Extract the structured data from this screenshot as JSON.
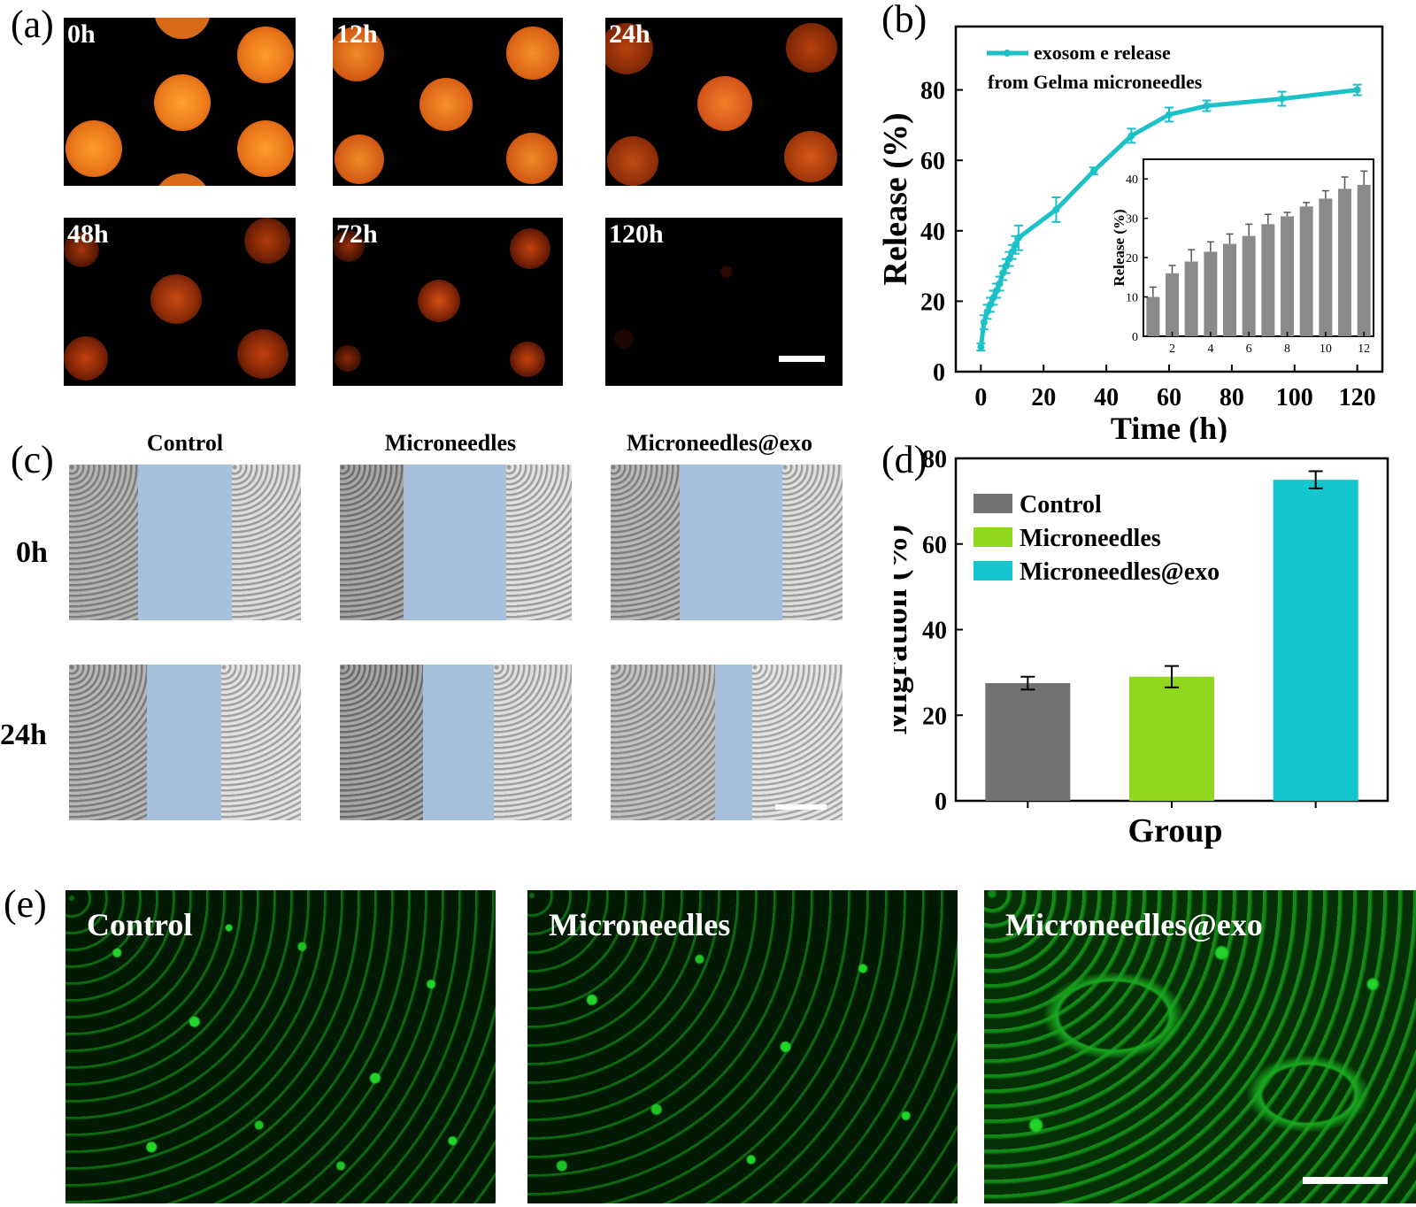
{
  "panels": {
    "a": "(a)",
    "b": "(b)",
    "c": "(c)",
    "d": "(d)",
    "e": "(e)"
  },
  "panel_a": {
    "times": [
      "0h",
      "12h",
      "24h",
      "48h",
      "72h",
      "120h"
    ]
  },
  "panel_c": {
    "columns": [
      "Control",
      "Microneedles",
      "Microneedles@exo"
    ],
    "rows": [
      "0h",
      "24h"
    ]
  },
  "panel_e": {
    "labels": [
      "Control",
      "Microneedles",
      "Microneedles@exo"
    ]
  },
  "chart_data": [
    {
      "type": "line",
      "panel": "b",
      "title": "",
      "xlabel": "Time (h)",
      "ylabel": "Release (%)",
      "xlim": [
        -8,
        128
      ],
      "ylim": [
        0,
        98
      ],
      "xticks": [
        0,
        20,
        40,
        60,
        80,
        100,
        120
      ],
      "yticks": [
        0,
        20,
        40,
        60,
        80
      ],
      "legend": [
        "exosom e release",
        "from Gelma microneedles"
      ],
      "series": [
        {
          "name": "exosome release from Gelma microneedles",
          "color": "#1cc1c8",
          "x": [
            0,
            1,
            2,
            3,
            4,
            5,
            6,
            7,
            8,
            9,
            10,
            11,
            12,
            24,
            36,
            48,
            60,
            72,
            96,
            120
          ],
          "y": [
            7,
            14,
            17,
            19,
            21,
            23,
            25,
            28,
            30,
            32,
            34,
            36,
            38,
            46,
            57,
            67,
            73,
            75.5,
            77.5,
            80
          ],
          "err": [
            1,
            2,
            2,
            2,
            2,
            2,
            2,
            2,
            2,
            2,
            2,
            2.5,
            3.5,
            3.5,
            1,
            2,
            2,
            1.5,
            2,
            1.5
          ]
        }
      ],
      "inset": {
        "type": "bar",
        "ylabel": "Release (%)",
        "xlim": [
          0.5,
          12.5
        ],
        "ylim": [
          0,
          45
        ],
        "xticks": [
          2,
          4,
          6,
          8,
          10,
          12
        ],
        "yticks": [
          0,
          10,
          20,
          30,
          40
        ],
        "x": [
          1,
          2,
          3,
          4,
          5,
          6,
          7,
          8,
          9,
          10,
          11,
          12
        ],
        "values": [
          10,
          16,
          19,
          21.5,
          23.5,
          25.5,
          28.5,
          30.5,
          33,
          35,
          37.5,
          38.5
        ],
        "err": [
          2.5,
          2,
          3,
          2.5,
          2.5,
          3,
          2.5,
          1,
          1,
          2,
          3,
          3.5
        ],
        "color": "#8a8a8a"
      }
    },
    {
      "type": "bar",
      "panel": "d",
      "title": "",
      "xlabel": "Group",
      "ylabel": "Migration (%)",
      "ylim": [
        0,
        80
      ],
      "yticks": [
        0,
        20,
        40,
        60,
        80
      ],
      "categories": [
        "Control",
        "Microneedles",
        "Microneedles@exo"
      ],
      "values": [
        27.5,
        29,
        75
      ],
      "err": [
        1.5,
        2.5,
        2
      ],
      "colors": [
        "#727272",
        "#8fd81f",
        "#14c7ce"
      ],
      "legend_position": "top-left"
    }
  ]
}
